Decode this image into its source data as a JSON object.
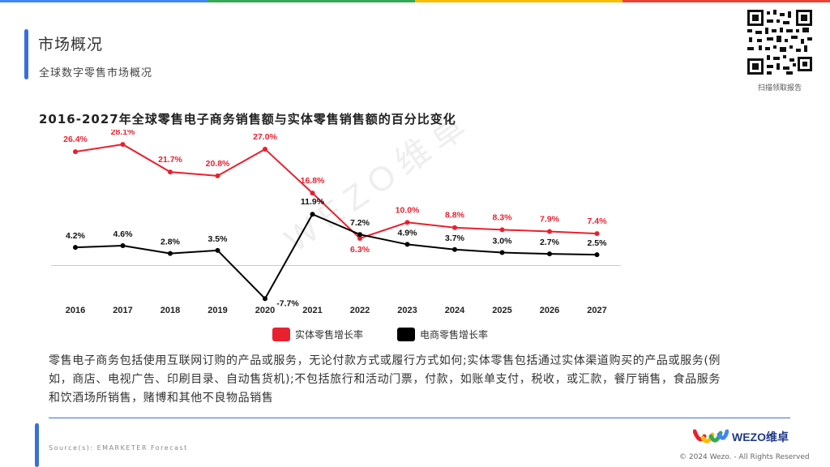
{
  "header": {
    "title": "市场概况",
    "subtitle": "全球数字零售市场概况",
    "top_bar_colors": [
      "#4285f4",
      "#34a853",
      "#fbbc05",
      "#ea4335"
    ]
  },
  "qr": {
    "caption": "扫描领取报告"
  },
  "watermark": "WEZO维卓",
  "chart_data": {
    "type": "line",
    "title": "2016-2027年全球零售电子商务销售额与实体零售销售额的百分比变化",
    "categories": [
      "2016",
      "2017",
      "2018",
      "2019",
      "2020",
      "2021",
      "2022",
      "2023",
      "2024",
      "2025",
      "2026",
      "2027"
    ],
    "ylim": [
      -8,
      30
    ],
    "series": [
      {
        "name": "实体零售增长率",
        "color": "#e8212f",
        "values": [
          26.4,
          28.1,
          21.7,
          20.8,
          27.0,
          16.8,
          6.3,
          10.0,
          8.8,
          8.3,
          7.9,
          7.4
        ],
        "labels": [
          "26.4%",
          "28.1%",
          "21.7%",
          "20.8%",
          "27.0%",
          "16.8%",
          "6.3%",
          "10.0%",
          "8.8%",
          "8.3%",
          "7.9%",
          "7.4%"
        ]
      },
      {
        "name": "电商零售增长率",
        "color": "#000000",
        "values": [
          4.2,
          4.6,
          2.8,
          3.5,
          -7.7,
          11.9,
          7.2,
          4.9,
          3.7,
          3.0,
          2.7,
          2.5
        ],
        "labels": [
          "4.2%",
          "4.6%",
          "2.8%",
          "3.5%",
          "-7.7%",
          "11.9%",
          "7.2%",
          "4.9%",
          "3.7%",
          "3.0%",
          "2.7%",
          "2.5%"
        ]
      }
    ]
  },
  "description": "零售电子商务包括使用互联网订购的产品或服务，无论付款方式或履行方式如何;实体零售包括通过实体渠道购买的产品或服务(例如，商店、电视广告、印刷目录、自动售货机);不包括旅行和活动门票，付款，如账单支付，税收，或汇款，餐厅销售，食品服务和饮酒场所销售，赌博和其他不良物品销售",
  "footer": {
    "source": "Source(s): EMARKETER Forecast",
    "logo_text": "WEZO维卓",
    "copyright": "© 2024 Wezo. - All Rights Reserved"
  }
}
